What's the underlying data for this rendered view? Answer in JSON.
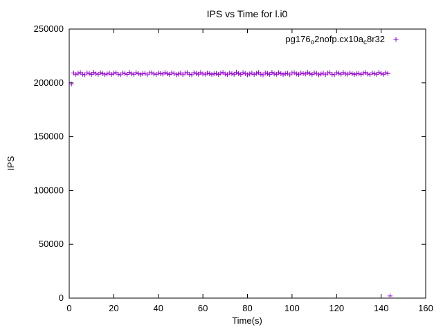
{
  "title": "IPS vs Time for l.i0",
  "chart_data": {
    "type": "scatter",
    "title": "IPS vs Time for l.i0",
    "xlabel": "Time(s)",
    "ylabel": "IPS",
    "xlim": [
      0,
      160
    ],
    "ylim": [
      0,
      250000
    ],
    "xticks": [
      0,
      20,
      40,
      60,
      80,
      100,
      120,
      140,
      160
    ],
    "yticks": [
      0,
      50000,
      100000,
      150000,
      200000,
      250000
    ],
    "grid": false,
    "legend_position": "top-right-inside",
    "marker": "plus",
    "marker_color": "#9400d3",
    "series": [
      {
        "name": "pg176_o2nofp.cx10a_c8r32",
        "name_display_parts": [
          {
            "t": "pg176",
            "sub": false
          },
          {
            "t": "o",
            "sub": true
          },
          {
            "t": "2nofp.cx10a",
            "sub": false
          },
          {
            "t": "c",
            "sub": true
          },
          {
            "t": "8r32",
            "sub": false
          }
        ],
        "x_start": 1,
        "x_step": 1,
        "y": [
          199000,
          209100,
          207800,
          208900,
          209600,
          208100,
          207500,
          209300,
          208700,
          207900,
          209800,
          208400,
          208000,
          209500,
          208600,
          207700,
          208300,
          209100,
          207800,
          208900,
          209600,
          208100,
          207500,
          209300,
          208700,
          207900,
          209800,
          208400,
          208000,
          209500,
          208600,
          207700,
          208500,
          208900,
          207600,
          209200,
          209400,
          208300,
          207800,
          209100,
          208600,
          208200,
          209700,
          208500,
          207900,
          209300,
          208800,
          207600,
          208200,
          209000,
          207700,
          209100,
          209500,
          208000,
          207600,
          209400,
          208800,
          208100,
          209600,
          208300,
          208100,
          209200,
          208500,
          207800,
          208400,
          208800,
          207900,
          209000,
          209700,
          208200,
          207700,
          209200,
          208500,
          208000,
          209900,
          208600,
          207800,
          209400,
          208700,
          207500,
          208300,
          209100,
          207800,
          208900,
          209600,
          208100,
          207500,
          209300,
          208700,
          207900,
          209800,
          208400,
          208000,
          209500,
          208600,
          207700,
          208500,
          208900,
          207600,
          209200,
          209400,
          208300,
          207800,
          209100,
          208600,
          208200,
          209700,
          208500,
          207900,
          209300,
          208800,
          207600,
          208200,
          209000,
          207700,
          209100,
          209500,
          208000,
          207600,
          209400,
          208800,
          208100,
          209600,
          208300,
          208100,
          209200,
          208500,
          207800,
          208400,
          208800,
          207900,
          209000,
          209700,
          208200,
          207700,
          209200,
          208500,
          208000,
          209900,
          208600,
          207800,
          209400,
          208700,
          2000
        ]
      }
    ]
  }
}
